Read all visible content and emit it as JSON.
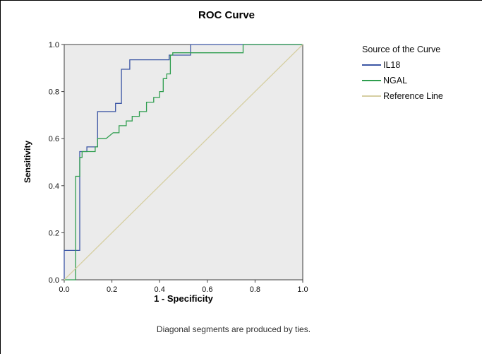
{
  "title": "ROC Curve",
  "caption": "Diagonal segments are produced by ties.",
  "axes": {
    "x_label": "1 - Specificity",
    "y_label": "Sensitivity",
    "x_ticks": [
      "0.0",
      "0.2",
      "0.4",
      "0.6",
      "0.8",
      "1.0"
    ],
    "y_ticks": [
      "0.0",
      "0.2",
      "0.4",
      "0.6",
      "0.8",
      "1.0"
    ]
  },
  "legend": {
    "title": "Source of the Curve",
    "items": [
      {
        "label": "IL18",
        "color": "#3c56a5"
      },
      {
        "label": "NGAL",
        "color": "#2f9e4f"
      },
      {
        "label": "Reference Line",
        "color": "#d6cfa2"
      }
    ]
  },
  "chart_data": {
    "type": "line",
    "subtype": "roc-step",
    "title": "ROC Curve",
    "xlabel": "1 - Specificity",
    "ylabel": "Sensitivity",
    "xlim": [
      0,
      1
    ],
    "ylim": [
      0,
      1
    ],
    "grid": false,
    "legend_position": "right",
    "panel_background": "#ebebeb",
    "series": [
      {
        "name": "IL18",
        "color": "#3c56a5",
        "points": [
          [
            0,
            0
          ],
          [
            0,
            0.125
          ],
          [
            0.065,
            0.125
          ],
          [
            0.065,
            0.545
          ],
          [
            0.095,
            0.545
          ],
          [
            0.095,
            0.565
          ],
          [
            0.14,
            0.565
          ],
          [
            0.14,
            0.715
          ],
          [
            0.215,
            0.715
          ],
          [
            0.215,
            0.75
          ],
          [
            0.24,
            0.75
          ],
          [
            0.24,
            0.895
          ],
          [
            0.275,
            0.895
          ],
          [
            0.275,
            0.935
          ],
          [
            0.44,
            0.935
          ],
          [
            0.44,
            0.955
          ],
          [
            0.53,
            0.955
          ],
          [
            0.53,
            1
          ],
          [
            1,
            1
          ]
        ]
      },
      {
        "name": "NGAL",
        "color": "#2f9e4f",
        "points": [
          [
            0,
            0
          ],
          [
            0.048,
            0
          ],
          [
            0.048,
            0.44
          ],
          [
            0.065,
            0.44
          ],
          [
            0.065,
            0.52
          ],
          [
            0.075,
            0.52
          ],
          [
            0.075,
            0.545
          ],
          [
            0.13,
            0.545
          ],
          [
            0.13,
            0.565
          ],
          [
            0.14,
            0.565
          ],
          [
            0.14,
            0.6
          ],
          [
            0.175,
            0.6
          ],
          [
            0.205,
            0.625
          ],
          [
            0.23,
            0.625
          ],
          [
            0.23,
            0.655
          ],
          [
            0.26,
            0.655
          ],
          [
            0.26,
            0.675
          ],
          [
            0.285,
            0.675
          ],
          [
            0.285,
            0.695
          ],
          [
            0.315,
            0.695
          ],
          [
            0.315,
            0.715
          ],
          [
            0.345,
            0.715
          ],
          [
            0.345,
            0.755
          ],
          [
            0.375,
            0.755
          ],
          [
            0.375,
            0.775
          ],
          [
            0.4,
            0.775
          ],
          [
            0.4,
            0.8
          ],
          [
            0.415,
            0.8
          ],
          [
            0.415,
            0.855
          ],
          [
            0.43,
            0.855
          ],
          [
            0.43,
            0.875
          ],
          [
            0.445,
            0.875
          ],
          [
            0.445,
            0.955
          ],
          [
            0.455,
            0.955
          ],
          [
            0.455,
            0.965
          ],
          [
            0.75,
            0.965
          ],
          [
            0.75,
            1
          ],
          [
            1,
            1
          ]
        ]
      },
      {
        "name": "Reference Line",
        "color": "#d6cfa2",
        "points": [
          [
            0,
            0
          ],
          [
            1,
            1
          ]
        ]
      }
    ]
  }
}
